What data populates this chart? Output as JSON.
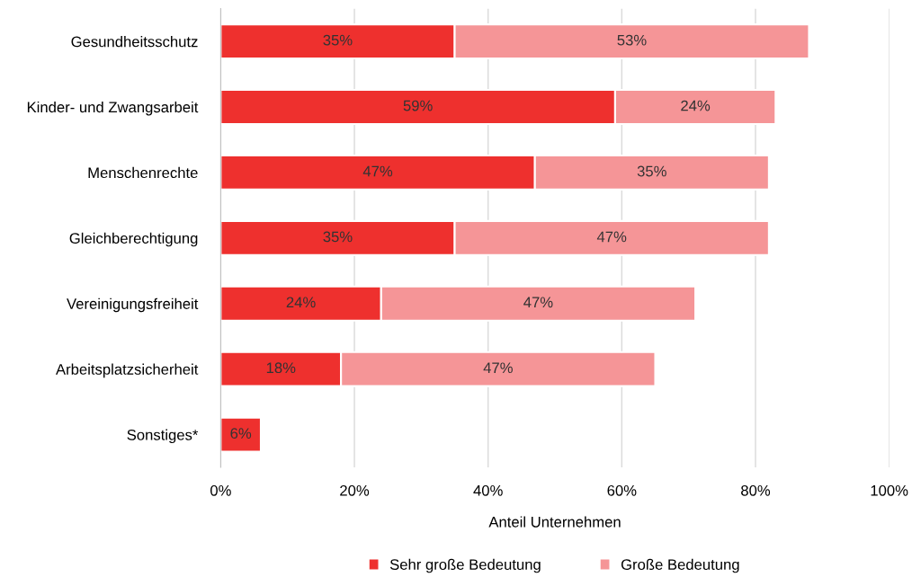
{
  "chart_data": {
    "type": "bar",
    "orientation": "horizontal",
    "stacked": true,
    "xlabel": "Anteil Unternehmen",
    "categories": [
      "Gesundheitsschutz",
      "Kinder- und Zwangsarbeit",
      "Menschenrechte",
      "Gleichberechtigung",
      "Vereinigungsfreiheit",
      "Arbeitsplatzsicherheit",
      "Sonstiges*"
    ],
    "series": [
      {
        "name": "Sehr große Bedeutung",
        "color": "#ee302e",
        "values": [
          35,
          59,
          47,
          35,
          24,
          18,
          6
        ],
        "value_labels": [
          "35%",
          "59%",
          "47%",
          "35%",
          "24%",
          "18%",
          "6%"
        ]
      },
      {
        "name": "Große Bedeutung",
        "color": "#f59597",
        "values": [
          53,
          24,
          35,
          47,
          47,
          47,
          null
        ],
        "value_labels": [
          "53%",
          "24%",
          "35%",
          "47%",
          "47%",
          "47%",
          null
        ]
      }
    ],
    "xlim": [
      0,
      100
    ],
    "xticks": [
      {
        "value": 0,
        "label": "0%"
      },
      {
        "value": 20,
        "label": "20%"
      },
      {
        "value": 40,
        "label": "40%"
      },
      {
        "value": 60,
        "label": "60%"
      },
      {
        "value": 80,
        "label": "80%"
      },
      {
        "value": 100,
        "label": "100%"
      }
    ],
    "grid": "x",
    "legend": "bottom"
  }
}
